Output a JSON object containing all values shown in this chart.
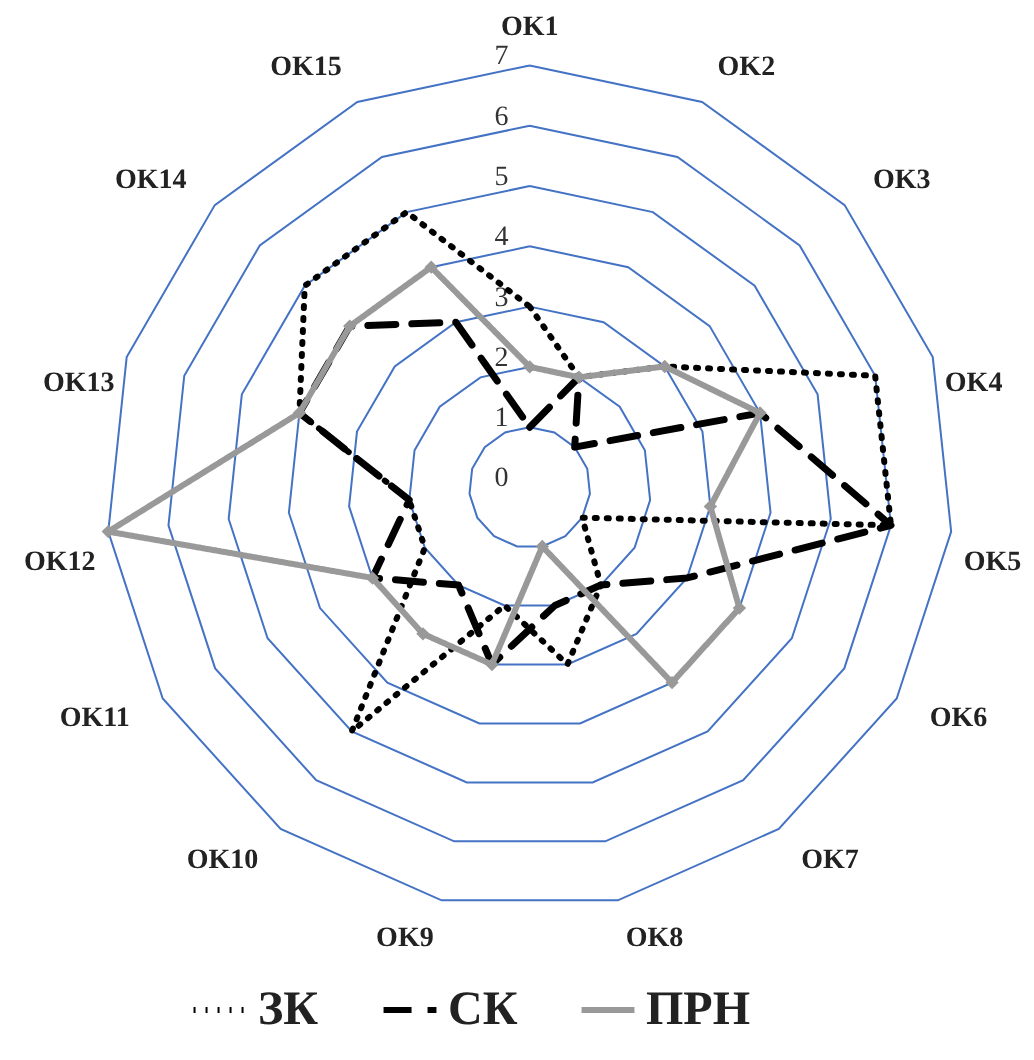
{
  "chart_data": {
    "type": "radar",
    "categories": [
      "OK1",
      "OK2",
      "OK3",
      "OK4",
      "OK5",
      "OK6",
      "OK7",
      "OK8",
      "OK9",
      "OK10",
      "OK11",
      "OK12",
      "OK13",
      "OK14",
      "OK15"
    ],
    "series": [
      {
        "name": "ЗК",
        "color": "#000000",
        "line_style": "dotted",
        "marker": "none",
        "values": [
          3,
          2,
          3,
          6,
          6,
          1,
          2,
          3,
          2,
          5,
          2,
          2,
          4,
          5,
          5
        ]
      },
      {
        "name": "СК",
        "color": "#000000",
        "line_style": "dashed",
        "marker": "none",
        "values": [
          1,
          2,
          1,
          4,
          6,
          3,
          2,
          2,
          3,
          2,
          3,
          2,
          4,
          4,
          3
        ]
      },
      {
        "name": "ПРН",
        "color": "#999999",
        "line_style": "solid",
        "marker": "diamond",
        "values": [
          2,
          2,
          3,
          4,
          3,
          4,
          4,
          1,
          3,
          3,
          3,
          7,
          4,
          4,
          4
        ]
      }
    ],
    "ylim": [
      0,
      7
    ],
    "yticks": [
      0,
      1,
      2,
      3,
      4,
      5,
      6,
      7
    ],
    "grid": true,
    "legend": "bottom"
  }
}
